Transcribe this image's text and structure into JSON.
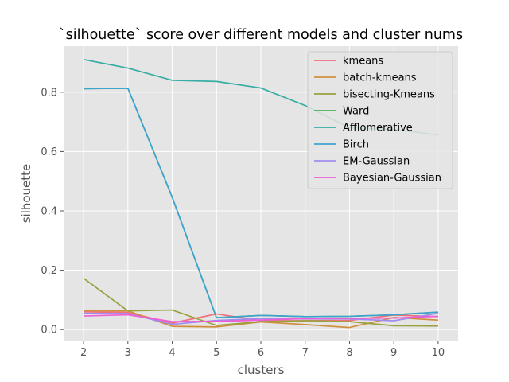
{
  "chart_data": {
    "type": "line",
    "title": "`silhouette` score over different models and cluster nums",
    "xlabel": "clusters",
    "ylabel": "silhouette",
    "x": [
      2,
      3,
      4,
      5,
      6,
      7,
      8,
      9,
      10
    ],
    "xlim": [
      1.55,
      10.45
    ],
    "ylim": [
      -0.037,
      0.955
    ],
    "xticks": [
      "2",
      "3",
      "4",
      "5",
      "6",
      "7",
      "8",
      "9",
      "10"
    ],
    "yticks": [
      "0.0",
      "0.2",
      "0.4",
      "0.6",
      "0.8"
    ],
    "ytick_values": [
      0.0,
      0.2,
      0.4,
      0.6,
      0.8
    ],
    "grid": true,
    "legend_position": "top-right",
    "series": [
      {
        "name": "kmeans",
        "color": "#f0707e",
        "values": [
          0.06,
          0.058,
          0.022,
          0.053,
          0.03,
          0.03,
          0.031,
          0.049,
          0.044
        ]
      },
      {
        "name": "batch-kmeans",
        "color": "#d18f3e",
        "values": [
          0.064,
          0.063,
          0.011,
          0.009,
          0.026,
          0.017,
          0.007,
          0.041,
          0.032
        ]
      },
      {
        "name": "bisecting-Kmeans",
        "color": "#9aa23f",
        "values": [
          0.173,
          0.063,
          0.066,
          0.014,
          0.027,
          0.03,
          0.027,
          0.013,
          0.012
        ]
      },
      {
        "name": "Ward",
        "color": "#4aac55",
        "values": [
          0.812,
          0.813,
          0.446,
          0.04,
          0.048,
          0.044,
          0.045,
          0.05,
          0.059
        ]
      },
      {
        "name": "Afflomerative",
        "color": "#37ada4",
        "values": [
          0.91,
          0.881,
          0.84,
          0.836,
          0.814,
          0.755,
          0.68,
          0.675,
          0.656
        ]
      },
      {
        "name": "Birch",
        "color": "#3ea3d1",
        "values": [
          0.812,
          0.813,
          0.446,
          0.04,
          0.048,
          0.044,
          0.045,
          0.05,
          0.059
        ]
      },
      {
        "name": "EM-Gaussian",
        "color": "#a18cf0",
        "values": [
          0.055,
          0.054,
          0.018,
          0.031,
          0.037,
          0.036,
          0.036,
          0.03,
          0.055
        ]
      },
      {
        "name": "Bayesian-Gaussian",
        "color": "#ee5ed7",
        "values": [
          0.046,
          0.05,
          0.027,
          0.028,
          0.032,
          0.037,
          0.038,
          0.039,
          0.045
        ]
      }
    ]
  }
}
